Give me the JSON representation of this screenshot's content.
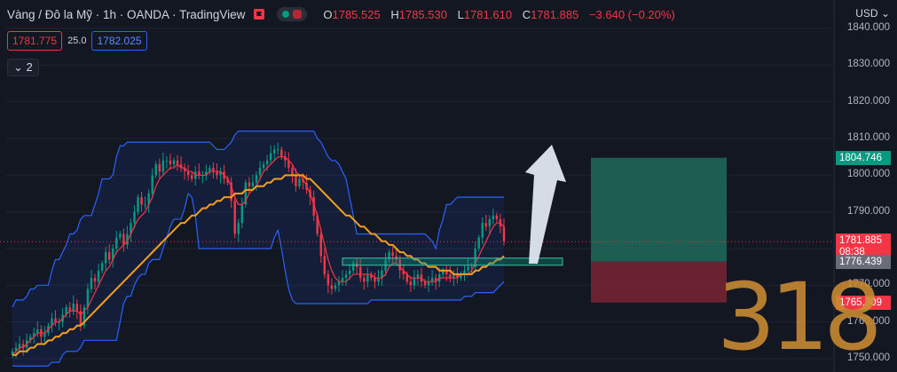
{
  "header": {
    "title": "Vàng / Đô la Mỹ · 1h · OANDA · TradingView",
    "ohlc": [
      {
        "key": "O",
        "value": "1785.525"
      },
      {
        "key": "H",
        "value": "1785.530"
      },
      {
        "key": "L",
        "value": "1781.610"
      },
      {
        "key": "C",
        "value": "1781.885"
      }
    ],
    "change": "−3.640 (−0.20%)",
    "currency": "USD"
  },
  "trade": {
    "sell": "1781.775",
    "spread": "25.0",
    "buy": "1782.025"
  },
  "indicators_collapsed_count": "2",
  "price_tags": {
    "target": "1804.746",
    "last_price": "1781.885",
    "countdown": "08:38",
    "entry": "1776.439",
    "stop": "1765.309"
  },
  "watermark": "318",
  "colors": {
    "background": "#131722",
    "up": "#089981",
    "down": "#f23645",
    "ma_fast": "#f23645",
    "ma_slow": "#f59f1c",
    "bands": "#2962ff",
    "target_zone": "#1e6b5a",
    "stop_zone": "#7b2532"
  },
  "chart_data": {
    "type": "candlestick",
    "symbol": "XAUUSD",
    "timeframe": "1h",
    "ylim": [
      1750,
      1842
    ],
    "y_ticks": [
      "1840.000",
      "1830.000",
      "1820.000",
      "1810.000",
      "1800.000",
      "1790.000",
      "1780.000",
      "1770.000",
      "1760.000",
      "1750.000"
    ],
    "close": [
      1752,
      1753,
      1754,
      1753,
      1755,
      1756,
      1757,
      1758,
      1756,
      1757,
      1759,
      1761,
      1760,
      1760,
      1762,
      1764,
      1763,
      1765,
      1763,
      1759,
      1764,
      1769,
      1772,
      1771,
      1774,
      1776,
      1779,
      1777,
      1780,
      1783,
      1784,
      1781,
      1784,
      1787,
      1790,
      1794,
      1792,
      1792,
      1795,
      1800,
      1803,
      1801,
      1804,
      1804,
      1803,
      1804,
      1803,
      1802,
      1801,
      1800,
      1799,
      1801,
      1800,
      1800,
      1801,
      1802,
      1801,
      1800,
      1801,
      1799,
      1798,
      1793,
      1784,
      1787,
      1792,
      1798,
      1797,
      1798,
      1800,
      1802,
      1803,
      1804,
      1806,
      1807,
      1807,
      1805,
      1804,
      1802,
      1800,
      1797,
      1799,
      1798,
      1796,
      1794,
      1789,
      1784,
      1778,
      1773,
      1770,
      1769,
      1770,
      1771,
      1772,
      1773,
      1774,
      1776,
      1775,
      1772,
      1771,
      1773,
      1772,
      1771,
      1772,
      1774,
      1777,
      1779,
      1778,
      1777,
      1774,
      1773,
      1771,
      1770,
      1772,
      1773,
      1771,
      1770,
      1771,
      1772,
      1771,
      1773,
      1774,
      1773,
      1772,
      1773,
      1772,
      1773,
      1774,
      1775,
      1775,
      1780,
      1783,
      1787,
      1786,
      1788,
      1789,
      1788,
      1786,
      1782
    ],
    "sma_fast": [
      1751,
      1752,
      1753,
      1753,
      1754,
      1755,
      1756,
      1757,
      1757,
      1757,
      1758,
      1759,
      1760,
      1760,
      1761,
      1762,
      1763,
      1763,
      1763,
      1762,
      1763,
      1764,
      1766,
      1768,
      1770,
      1772,
      1774,
      1775,
      1777,
      1779,
      1780,
      1781,
      1782,
      1784,
      1786,
      1788,
      1789,
      1790,
      1792,
      1794,
      1797,
      1799,
      1800,
      1801,
      1802,
      1802,
      1803,
      1802,
      1802,
      1801,
      1801,
      1800,
      1800,
      1800,
      1800,
      1801,
      1801,
      1801,
      1801,
      1800,
      1799,
      1797,
      1794,
      1792,
      1792,
      1793,
      1795,
      1796,
      1797,
      1799,
      1801,
      1802,
      1803,
      1804,
      1805,
      1805,
      1805,
      1804,
      1803,
      1801,
      1800,
      1799,
      1797,
      1795,
      1792,
      1789,
      1785,
      1781,
      1777,
      1774,
      1772,
      1771,
      1771,
      1771,
      1772,
      1773,
      1773,
      1773,
      1773,
      1773,
      1773,
      1772,
      1772,
      1772,
      1773,
      1775,
      1776,
      1776,
      1775,
      1774,
      1773,
      1772,
      1772,
      1772,
      1772,
      1771,
      1771,
      1771,
      1771,
      1772,
      1772,
      1772,
      1772,
      1772,
      1772,
      1773,
      1773,
      1773,
      1774,
      1776,
      1778,
      1780,
      1782,
      1784,
      1786,
      1787,
      1787,
      1786
    ],
    "sma_slow": [
      1751,
      1751,
      1752,
      1752,
      1752,
      1753,
      1753,
      1754,
      1754,
      1754,
      1755,
      1755,
      1756,
      1756,
      1757,
      1757,
      1758,
      1758,
      1759,
      1759,
      1760,
      1761,
      1762,
      1763,
      1764,
      1765,
      1766,
      1767,
      1768,
      1769,
      1770,
      1771,
      1772,
      1773,
      1774,
      1775,
      1776,
      1777,
      1778,
      1779,
      1780,
      1781,
      1782,
      1783,
      1784,
      1785,
      1786,
      1787,
      1787,
      1788,
      1789,
      1789,
      1790,
      1791,
      1791,
      1792,
      1792,
      1793,
      1793,
      1794,
      1794,
      1794,
      1795,
      1795,
      1795,
      1796,
      1796,
      1796,
      1797,
      1797,
      1797,
      1798,
      1798,
      1799,
      1799,
      1799,
      1800,
      1800,
      1800,
      1800,
      1800,
      1800,
      1799,
      1799,
      1798,
      1797,
      1796,
      1795,
      1794,
      1793,
      1792,
      1791,
      1790,
      1789,
      1789,
      1788,
      1787,
      1786,
      1786,
      1785,
      1784,
      1784,
      1783,
      1782,
      1782,
      1781,
      1781,
      1780,
      1779,
      1779,
      1778,
      1778,
      1777,
      1777,
      1776,
      1776,
      1775,
      1775,
      1775,
      1774,
      1774,
      1774,
      1774,
      1773,
      1773,
      1773,
      1773,
      1773,
      1773,
      1774,
      1774,
      1775,
      1775,
      1776,
      1776,
      1777,
      1777,
      1778
    ],
    "annotations": {
      "target": 1804.746,
      "entry": 1776.439,
      "stop": 1765.309,
      "last_price": 1781.885
    }
  }
}
